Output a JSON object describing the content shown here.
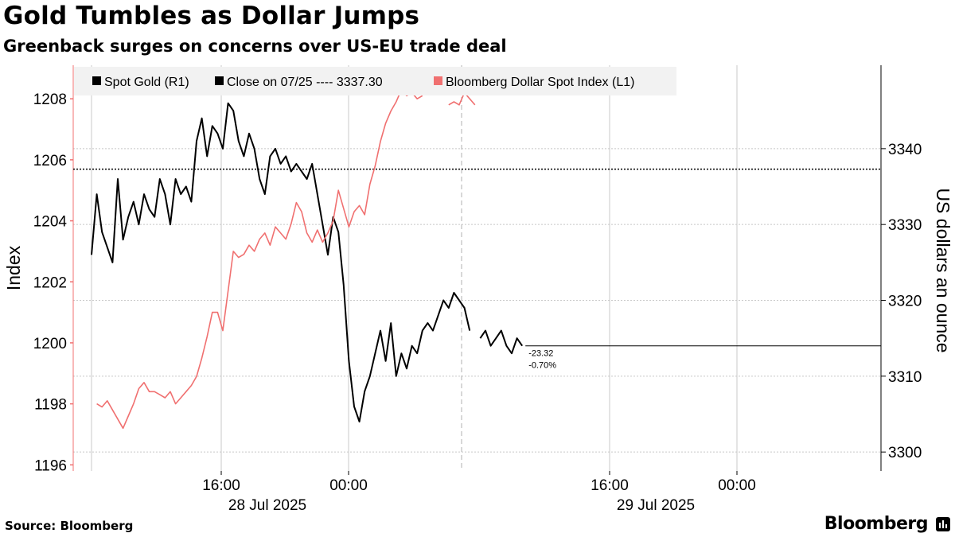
{
  "header": {
    "title": "Gold Tumbles as Dollar Jumps",
    "subtitle": "Greenback surges on concerns over US-EU trade deal"
  },
  "footer": {
    "source": "Source: Bloomberg",
    "brand": "Bloomberg"
  },
  "colors": {
    "gold": "#000000",
    "dollar": "#f07070",
    "grid": "#c8c8c8",
    "legend_bg": "#f2f2f2"
  },
  "chart_data": {
    "type": "line",
    "x_axis": {
      "type": "time",
      "tick_labels": [
        "16:00",
        "00:00",
        "16:00",
        "00:00"
      ],
      "date_labels": [
        "28 Jul 2025",
        "29 Jul 2025"
      ]
    },
    "y_left": {
      "label": "Index",
      "ylim": [
        1195.8,
        1209.1
      ],
      "ticks": [
        1196,
        1198,
        1200,
        1202,
        1204,
        1206,
        1208
      ]
    },
    "y_right": {
      "label": "US dollars an ounce",
      "ylim": [
        3297.5,
        3351
      ],
      "ticks": [
        3300,
        3310,
        3320,
        3330,
        3340
      ]
    },
    "legend": {
      "placement": "top-left",
      "items": [
        {
          "label": "Spot Gold (R1)",
          "color": "#000000"
        },
        {
          "label": "Close on 07/25 ---- 3337.30",
          "color": "#000000"
        },
        {
          "label": "Bloomberg Dollar Spot Index (L1)",
          "color": "#f07070"
        }
      ]
    },
    "reference_line": {
      "axis": "right",
      "value": 3337.3,
      "label": "Close on 07/25"
    },
    "last_value_annotation": {
      "change": "-23.32",
      "pct": "-0.70%",
      "value": 3314
    },
    "series": [
      {
        "name": "Spot Gold (R1)",
        "axis": "right",
        "color": "#000000",
        "segments": [
          [
            [
              0,
              3326
            ],
            [
              1,
              3334
            ],
            [
              2,
              3329
            ],
            [
              3,
              3327
            ],
            [
              4,
              3325
            ],
            [
              5,
              3336
            ],
            [
              6,
              3328
            ],
            [
              7,
              3331
            ],
            [
              8,
              3333
            ],
            [
              9,
              3330
            ],
            [
              10,
              3334
            ],
            [
              11,
              3332
            ],
            [
              12,
              3331
            ],
            [
              13,
              3336
            ],
            [
              14,
              3334
            ],
            [
              15,
              3330
            ],
            [
              16,
              3336
            ],
            [
              17,
              3334
            ],
            [
              18,
              3335
            ],
            [
              19,
              3333
            ],
            [
              20,
              3341
            ],
            [
              21,
              3344
            ],
            [
              22,
              3339
            ],
            [
              23,
              3343
            ],
            [
              24,
              3342
            ],
            [
              25,
              3340
            ],
            [
              26,
              3346
            ],
            [
              27,
              3345
            ],
            [
              28,
              3341
            ],
            [
              29,
              3339
            ],
            [
              30,
              3342
            ],
            [
              31,
              3340
            ],
            [
              32,
              3336
            ],
            [
              33,
              3334
            ],
            [
              34,
              3339
            ],
            [
              35,
              3340
            ],
            [
              36,
              3338
            ],
            [
              37,
              3339
            ],
            [
              38,
              3337
            ],
            [
              39,
              3338
            ],
            [
              40,
              3337
            ],
            [
              41,
              3336
            ],
            [
              42,
              3338
            ],
            [
              43,
              3334
            ],
            [
              44,
              3330
            ],
            [
              45,
              3326
            ],
            [
              46,
              3331
            ],
            [
              47,
              3329
            ],
            [
              48,
              3322
            ],
            [
              49,
              3312
            ],
            [
              50,
              3306
            ],
            [
              51,
              3304
            ],
            [
              52,
              3308
            ],
            [
              53,
              3310
            ],
            [
              54,
              3313
            ],
            [
              55,
              3316
            ],
            [
              56,
              3312
            ],
            [
              57,
              3317
            ],
            [
              58,
              3310
            ],
            [
              59,
              3313
            ],
            [
              60,
              3311
            ],
            [
              61,
              3314
            ],
            [
              62,
              3313
            ],
            [
              63,
              3316
            ],
            [
              64,
              3317
            ],
            [
              65,
              3316
            ],
            [
              66,
              3318
            ],
            [
              67,
              3320
            ],
            [
              68,
              3319
            ],
            [
              69,
              3321
            ],
            [
              70,
              3320
            ],
            [
              71,
              3319
            ],
            [
              72,
              3316
            ]
          ],
          [
            [
              74,
              3315
            ],
            [
              75,
              3316
            ],
            [
              76,
              3314
            ],
            [
              77,
              3315
            ],
            [
              78,
              3316
            ],
            [
              79,
              3314
            ],
            [
              80,
              3313
            ],
            [
              81,
              3315
            ],
            [
              82,
              3314
            ]
          ]
        ]
      },
      {
        "name": "Bloomberg Dollar Spot Index (L1)",
        "axis": "left",
        "color": "#f07070",
        "segments": [
          [
            [
              1,
              1198.0
            ],
            [
              2,
              1197.9
            ],
            [
              3,
              1198.1
            ],
            [
              4,
              1197.8
            ],
            [
              5,
              1197.5
            ],
            [
              6,
              1197.2
            ],
            [
              7,
              1197.6
            ],
            [
              8,
              1198.0
            ],
            [
              9,
              1198.5
            ],
            [
              10,
              1198.7
            ],
            [
              11,
              1198.4
            ],
            [
              12,
              1198.4
            ],
            [
              13,
              1198.3
            ],
            [
              14,
              1198.2
            ],
            [
              15,
              1198.4
            ],
            [
              16,
              1198.0
            ],
            [
              17,
              1198.2
            ],
            [
              18,
              1198.4
            ],
            [
              19,
              1198.6
            ],
            [
              20,
              1198.9
            ],
            [
              21,
              1199.5
            ],
            [
              22,
              1200.2
            ],
            [
              23,
              1201.0
            ],
            [
              24,
              1201.0
            ],
            [
              25,
              1200.4
            ],
            [
              26,
              1201.7
            ],
            [
              27,
              1203.0
            ],
            [
              28,
              1202.8
            ],
            [
              29,
              1202.9
            ],
            [
              30,
              1203.2
            ],
            [
              31,
              1203.0
            ],
            [
              32,
              1203.4
            ],
            [
              33,
              1203.6
            ],
            [
              34,
              1203.2
            ],
            [
              35,
              1203.8
            ],
            [
              36,
              1203.6
            ],
            [
              37,
              1203.4
            ],
            [
              38,
              1203.9
            ],
            [
              39,
              1204.6
            ],
            [
              40,
              1204.3
            ],
            [
              41,
              1203.6
            ],
            [
              42,
              1203.3
            ],
            [
              43,
              1203.7
            ],
            [
              44,
              1203.3
            ],
            [
              45,
              1203.6
            ],
            [
              46,
              1204.0
            ],
            [
              47,
              1205.0
            ],
            [
              48,
              1204.4
            ],
            [
              49,
              1203.8
            ],
            [
              50,
              1204.3
            ],
            [
              51,
              1204.5
            ],
            [
              52,
              1204.2
            ],
            [
              53,
              1205.2
            ],
            [
              54,
              1205.8
            ],
            [
              55,
              1206.6
            ],
            [
              56,
              1207.2
            ],
            [
              57,
              1207.6
            ],
            [
              58,
              1207.9
            ],
            [
              59,
              1208.3
            ],
            [
              60,
              1208.1
            ],
            [
              61,
              1208.2
            ],
            [
              62,
              1208.0
            ],
            [
              63,
              1208.1
            ]
          ],
          [
            [
              68,
              1207.8
            ],
            [
              69,
              1207.9
            ],
            [
              70,
              1207.8
            ],
            [
              71,
              1208.2
            ],
            [
              72,
              1208.0
            ],
            [
              73,
              1207.8
            ]
          ]
        ]
      }
    ]
  }
}
